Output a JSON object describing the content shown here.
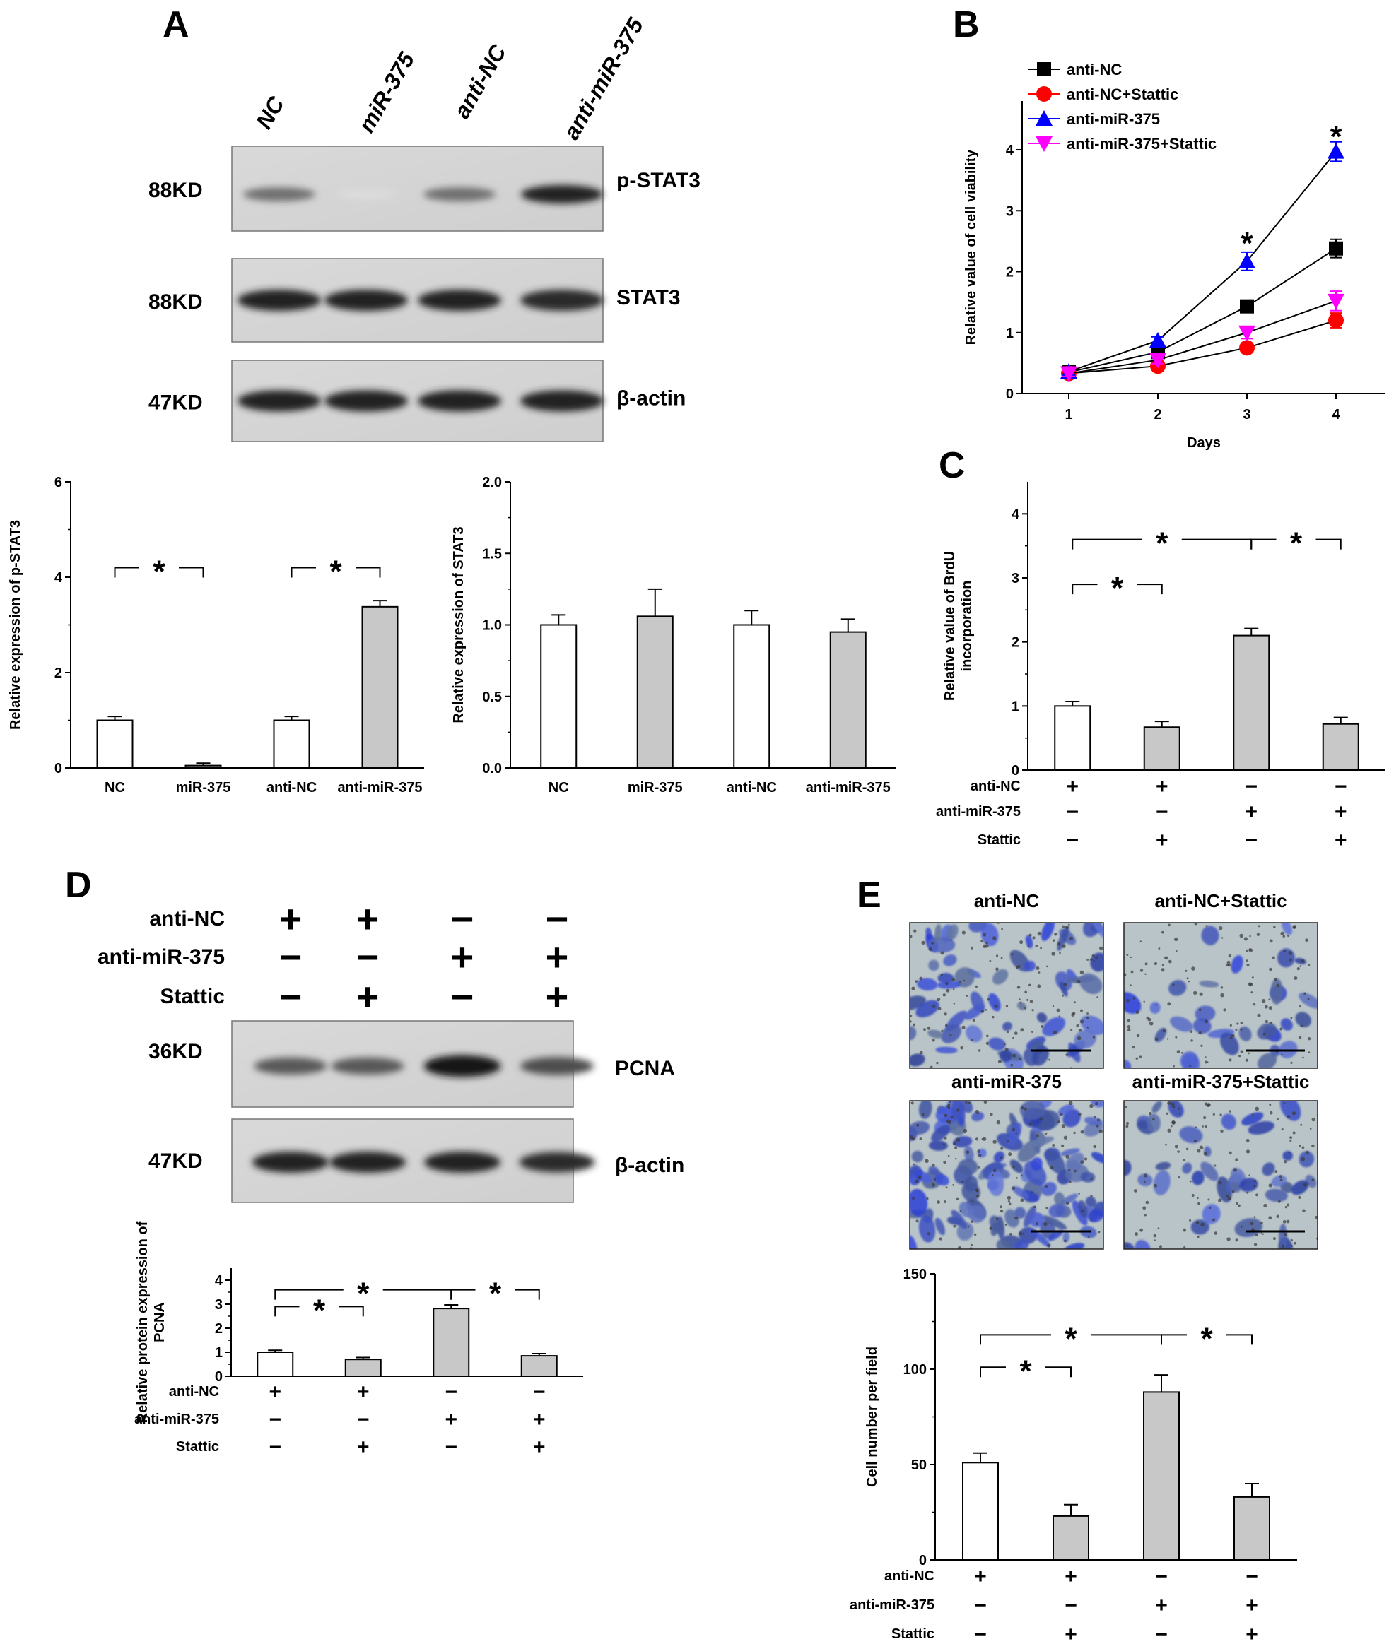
{
  "panels": {
    "A": "A",
    "B": "B",
    "C": "C",
    "D": "D",
    "E": "E"
  },
  "blot_A": {
    "lanes": [
      "NC",
      "miR-375",
      "anti-NC",
      "anti-miR-375"
    ],
    "rows": [
      {
        "kd": "88KD",
        "protein": "p-STAT3",
        "intensity": [
          0.55,
          0.06,
          0.55,
          0.9
        ]
      },
      {
        "kd": "88KD",
        "protein": "STAT3",
        "intensity": [
          0.9,
          0.9,
          0.9,
          0.85
        ]
      },
      {
        "kd": "47KD",
        "protein": "β-actin",
        "intensity": [
          0.9,
          0.9,
          0.9,
          0.9
        ]
      }
    ]
  },
  "blot_D": {
    "conditions": [
      {
        "label": "anti-NC",
        "signs": [
          "+",
          "+",
          "-",
          "-"
        ]
      },
      {
        "label": "anti-miR-375",
        "signs": [
          "-",
          "-",
          "+",
          "+"
        ]
      },
      {
        "label": "Stattic",
        "signs": [
          "-",
          "+",
          "-",
          "+"
        ]
      }
    ],
    "rows": [
      {
        "kd": "36KD",
        "protein": "PCNA",
        "intensity": [
          0.65,
          0.65,
          0.95,
          0.7
        ]
      },
      {
        "kd": "47KD",
        "protein": "β-actin",
        "intensity": [
          0.9,
          0.9,
          0.9,
          0.85
        ]
      }
    ]
  },
  "micrographs_E": {
    "labels": [
      "anti-NC",
      "anti-NC+Stattic",
      "anti-miR-375",
      "anti-miR-375+Stattic"
    ],
    "density": [
      0.45,
      0.22,
      0.85,
      0.3
    ]
  },
  "chart_data": [
    {
      "id": "A-pSTAT3",
      "type": "bar",
      "categories": [
        "NC",
        "miR-375",
        "anti-NC",
        "anti-miR-375"
      ],
      "values": [
        1.0,
        0.05,
        1.0,
        3.38
      ],
      "errors": [
        0.08,
        0.05,
        0.08,
        0.13
      ],
      "fills": [
        "#ffffff",
        "#c8c8c8",
        "#ffffff",
        "#c8c8c8"
      ],
      "ylabel": "Relative expression of p-STAT3",
      "ylim": [
        0,
        6
      ],
      "yticks": [
        "0",
        "2",
        "4",
        "6"
      ],
      "significance": [
        {
          "from": 0,
          "to": 1,
          "label": "*"
        },
        {
          "from": 2,
          "to": 3,
          "label": "*"
        }
      ]
    },
    {
      "id": "A-STAT3",
      "type": "bar",
      "categories": [
        "NC",
        "miR-375",
        "anti-NC",
        "anti-miR-375"
      ],
      "values": [
        1.0,
        1.06,
        1.0,
        0.95
      ],
      "errors": [
        0.07,
        0.19,
        0.1,
        0.09
      ],
      "fills": [
        "#ffffff",
        "#c8c8c8",
        "#ffffff",
        "#c8c8c8"
      ],
      "ylabel": "Relative expression of STAT3",
      "ylim": [
        0,
        2.0
      ],
      "yticks": [
        "0.0",
        "0.5",
        "1.0",
        "1.5",
        "2.0"
      ],
      "significance": []
    },
    {
      "id": "B",
      "type": "line",
      "x": [
        1,
        2,
        3,
        4
      ],
      "xticks": [
        "1",
        "2",
        "3",
        "4"
      ],
      "xlabel": "Days",
      "ylabel": "Relative value of cell viability",
      "ylim": [
        0,
        4.8
      ],
      "yticks": [
        "0",
        "1",
        "2",
        "3",
        "4"
      ],
      "series": [
        {
          "name": "anti-NC",
          "values": [
            0.35,
            0.68,
            1.43,
            2.38
          ],
          "errors": [
            0.05,
            0.06,
            0.08,
            0.15
          ],
          "color": "#000000",
          "marker": "square"
        },
        {
          "name": "anti-NC+Stattic",
          "values": [
            0.33,
            0.45,
            0.75,
            1.2
          ],
          "errors": [
            0.05,
            0.06,
            0.07,
            0.12
          ],
          "color": "#ff0000",
          "marker": "circle"
        },
        {
          "name": "anti-miR-375",
          "values": [
            0.36,
            0.87,
            2.17,
            3.97
          ],
          "errors": [
            0.05,
            0.06,
            0.15,
            0.16
          ],
          "color": "#0000ff",
          "marker": "triangle"
        },
        {
          "name": "anti-miR-375+Stattic",
          "values": [
            0.33,
            0.55,
            1.0,
            1.52
          ],
          "errors": [
            0.05,
            0.06,
            0.1,
            0.16
          ],
          "color": "#ff00ff",
          "marker": "triangle-down"
        }
      ],
      "annotations": [
        {
          "x": 3,
          "label": "*",
          "value": 2.55
        },
        {
          "x": 4,
          "label": "*",
          "value": 4.3
        }
      ]
    },
    {
      "id": "C",
      "type": "bar",
      "categories": [
        "",
        "",
        "",
        ""
      ],
      "values": [
        1.0,
        0.67,
        2.1,
        0.72
      ],
      "errors": [
        0.07,
        0.09,
        0.11,
        0.1
      ],
      "fills": [
        "#ffffff",
        "#c8c8c8",
        "#c8c8c8",
        "#c8c8c8"
      ],
      "ylabel": "Relative value of BrdU incorporation",
      "ylim": [
        0,
        4.5
      ],
      "yticks": [
        "0",
        "1",
        "2",
        "3",
        "4"
      ],
      "significance": [
        {
          "from": 0,
          "to": 1,
          "level": 2.9,
          "label": "*"
        },
        {
          "from": 0,
          "to": 2,
          "level": 3.6,
          "label": "*"
        },
        {
          "from": 2,
          "to": 3,
          "level": 3.6,
          "label": "*"
        }
      ],
      "conditions": [
        {
          "label": "anti-NC",
          "signs": [
            "+",
            "+",
            "-",
            "-"
          ]
        },
        {
          "label": "anti-miR-375",
          "signs": [
            "-",
            "-",
            "+",
            "+"
          ]
        },
        {
          "label": "Stattic",
          "signs": [
            "-",
            "+",
            "-",
            "+"
          ]
        }
      ]
    },
    {
      "id": "D",
      "type": "bar",
      "categories": [
        "",
        "",
        "",
        ""
      ],
      "values": [
        1.0,
        0.7,
        2.82,
        0.85
      ],
      "errors": [
        0.08,
        0.08,
        0.15,
        0.09
      ],
      "fills": [
        "#ffffff",
        "#c8c8c8",
        "#c8c8c8",
        "#c8c8c8"
      ],
      "ylabel": "Relative  protein expression of PCNA",
      "ylim": [
        0,
        4.5
      ],
      "yticks": [
        "0",
        "1",
        "2",
        "3",
        "4"
      ],
      "significance": [
        {
          "from": 0,
          "to": 1,
          "level": 2.9,
          "label": "*"
        },
        {
          "from": 0,
          "to": 2,
          "level": 3.6,
          "label": "*"
        },
        {
          "from": 2,
          "to": 3,
          "level": 3.6,
          "label": "*"
        }
      ],
      "conditions": [
        {
          "label": "anti-NC",
          "signs": [
            "+",
            "+",
            "-",
            "-"
          ]
        },
        {
          "label": "anti-miR-375",
          "signs": [
            "-",
            "-",
            "+",
            "+"
          ]
        },
        {
          "label": "Stattic",
          "signs": [
            "-",
            "+",
            "-",
            "+"
          ]
        }
      ]
    },
    {
      "id": "E",
      "type": "bar",
      "categories": [
        "",
        "",
        "",
        ""
      ],
      "values": [
        51,
        23,
        88,
        33
      ],
      "errors": [
        5,
        6,
        9,
        7
      ],
      "fills": [
        "#ffffff",
        "#c8c8c8",
        "#c8c8c8",
        "#c8c8c8"
      ],
      "ylabel": "Cell number per field",
      "ylim": [
        0,
        150
      ],
      "yticks": [
        "0",
        "50",
        "100",
        "150"
      ],
      "significance": [
        {
          "from": 0,
          "to": 1,
          "level": 101,
          "label": "*"
        },
        {
          "from": 0,
          "to": 2,
          "level": 118,
          "label": "*"
        },
        {
          "from": 2,
          "to": 3,
          "level": 118,
          "label": "*"
        }
      ],
      "conditions": [
        {
          "label": "anti-NC",
          "signs": [
            "+",
            "+",
            "-",
            "-"
          ]
        },
        {
          "label": "anti-miR-375",
          "signs": [
            "-",
            "-",
            "+",
            "+"
          ]
        },
        {
          "label": "Stattic",
          "signs": [
            "-",
            "+",
            "-",
            "+"
          ]
        }
      ]
    }
  ]
}
